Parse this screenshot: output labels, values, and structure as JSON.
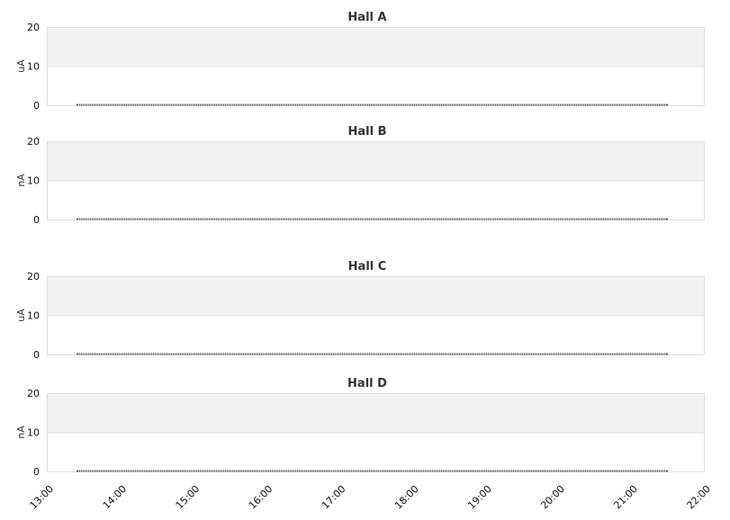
{
  "chart_data": [
    {
      "type": "line",
      "title": "Hall A",
      "ylabel": "uA",
      "ylim": [
        0,
        20
      ],
      "yticks": [
        0,
        10,
        20
      ],
      "xlim": [
        "13:00",
        "22:00"
      ],
      "grid": true,
      "series": [
        {
          "points": [
            {
              "x": "13:25",
              "y": 0
            },
            {
              "x": "21:30",
              "y": 0
            }
          ],
          "style": "dotted"
        }
      ]
    },
    {
      "type": "line",
      "title": "Hall B",
      "ylabel": "nA",
      "ylim": [
        0,
        20
      ],
      "yticks": [
        0,
        10,
        20
      ],
      "xlim": [
        "13:00",
        "22:00"
      ],
      "grid": true,
      "series": [
        {
          "points": [
            {
              "x": "13:25",
              "y": 0
            },
            {
              "x": "21:30",
              "y": 0
            }
          ],
          "style": "dotted"
        }
      ]
    },
    {
      "type": "line",
      "title": "Hall C",
      "ylabel": "uA",
      "ylim": [
        0,
        20
      ],
      "yticks": [
        0,
        10,
        20
      ],
      "xlim": [
        "13:00",
        "22:00"
      ],
      "grid": true,
      "series": [
        {
          "points": [
            {
              "x": "13:25",
              "y": 0
            },
            {
              "x": "21:30",
              "y": 0
            }
          ],
          "style": "dotted"
        }
      ]
    },
    {
      "type": "line",
      "title": "Hall D",
      "ylabel": "nA",
      "ylim": [
        0,
        20
      ],
      "yticks": [
        0,
        10,
        20
      ],
      "xlim": [
        "13:00",
        "22:00"
      ],
      "grid": true,
      "xticks": [
        "13:00",
        "14:00",
        "15:00",
        "16:00",
        "17:00",
        "18:00",
        "19:00",
        "20:00",
        "21:00",
        "22:00"
      ],
      "series": [
        {
          "points": [
            {
              "x": "13:25",
              "y": 0
            },
            {
              "x": "21:30",
              "y": 0
            }
          ],
          "style": "dotted"
        }
      ]
    }
  ],
  "colors": {
    "band": "#f2f2f2",
    "grid": "#dddddd",
    "line": "#333333"
  }
}
